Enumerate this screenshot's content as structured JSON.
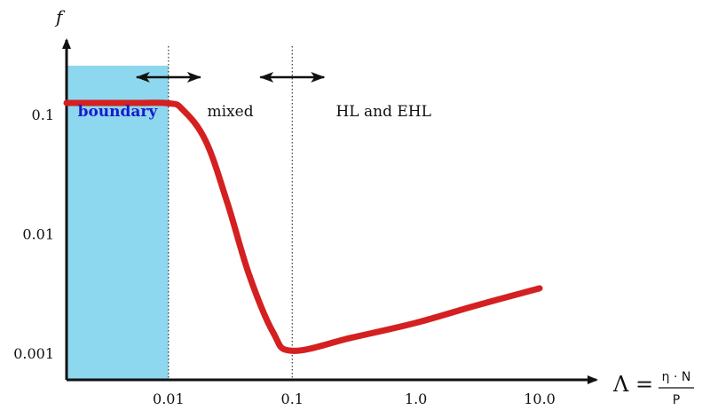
{
  "chart_data": {
    "type": "line",
    "title": "",
    "ylabel": "f",
    "xlabel": {
      "symbol": "Λ =",
      "numerator": "η · N",
      "denominator": "P"
    },
    "x_scale": "log",
    "y_scale": "log",
    "x_ticks": [
      "0.01",
      "0.1",
      "1.0",
      "10.0"
    ],
    "y_ticks": [
      "0.1",
      "0.01",
      "0.001"
    ],
    "xlim": [
      0.0015,
      20
    ],
    "ylim": [
      0.0006,
      0.4
    ],
    "regions": [
      {
        "label": "boundary",
        "x_from": 0.0015,
        "x_to": 0.01,
        "shaded": true,
        "color": "#8dd8ef",
        "label_color": "#1a1acc"
      },
      {
        "label": "mixed",
        "x_from": 0.01,
        "x_to": 0.1
      },
      {
        "label": "HL and EHL",
        "x_from": 0.1,
        "x_to": 20
      }
    ],
    "boundary_lines_x": [
      0.01,
      0.1
    ],
    "series": [
      {
        "color": "#d42020",
        "x": [
          0.0015,
          0.005,
          0.01,
          0.013,
          0.02,
          0.03,
          0.045,
          0.07,
          0.1,
          0.3,
          1,
          3,
          10
        ],
        "y": [
          0.125,
          0.125,
          0.124,
          0.11,
          0.06,
          0.018,
          0.0045,
          0.0015,
          0.00105,
          0.00135,
          0.0018,
          0.0025,
          0.0035
        ]
      }
    ]
  }
}
